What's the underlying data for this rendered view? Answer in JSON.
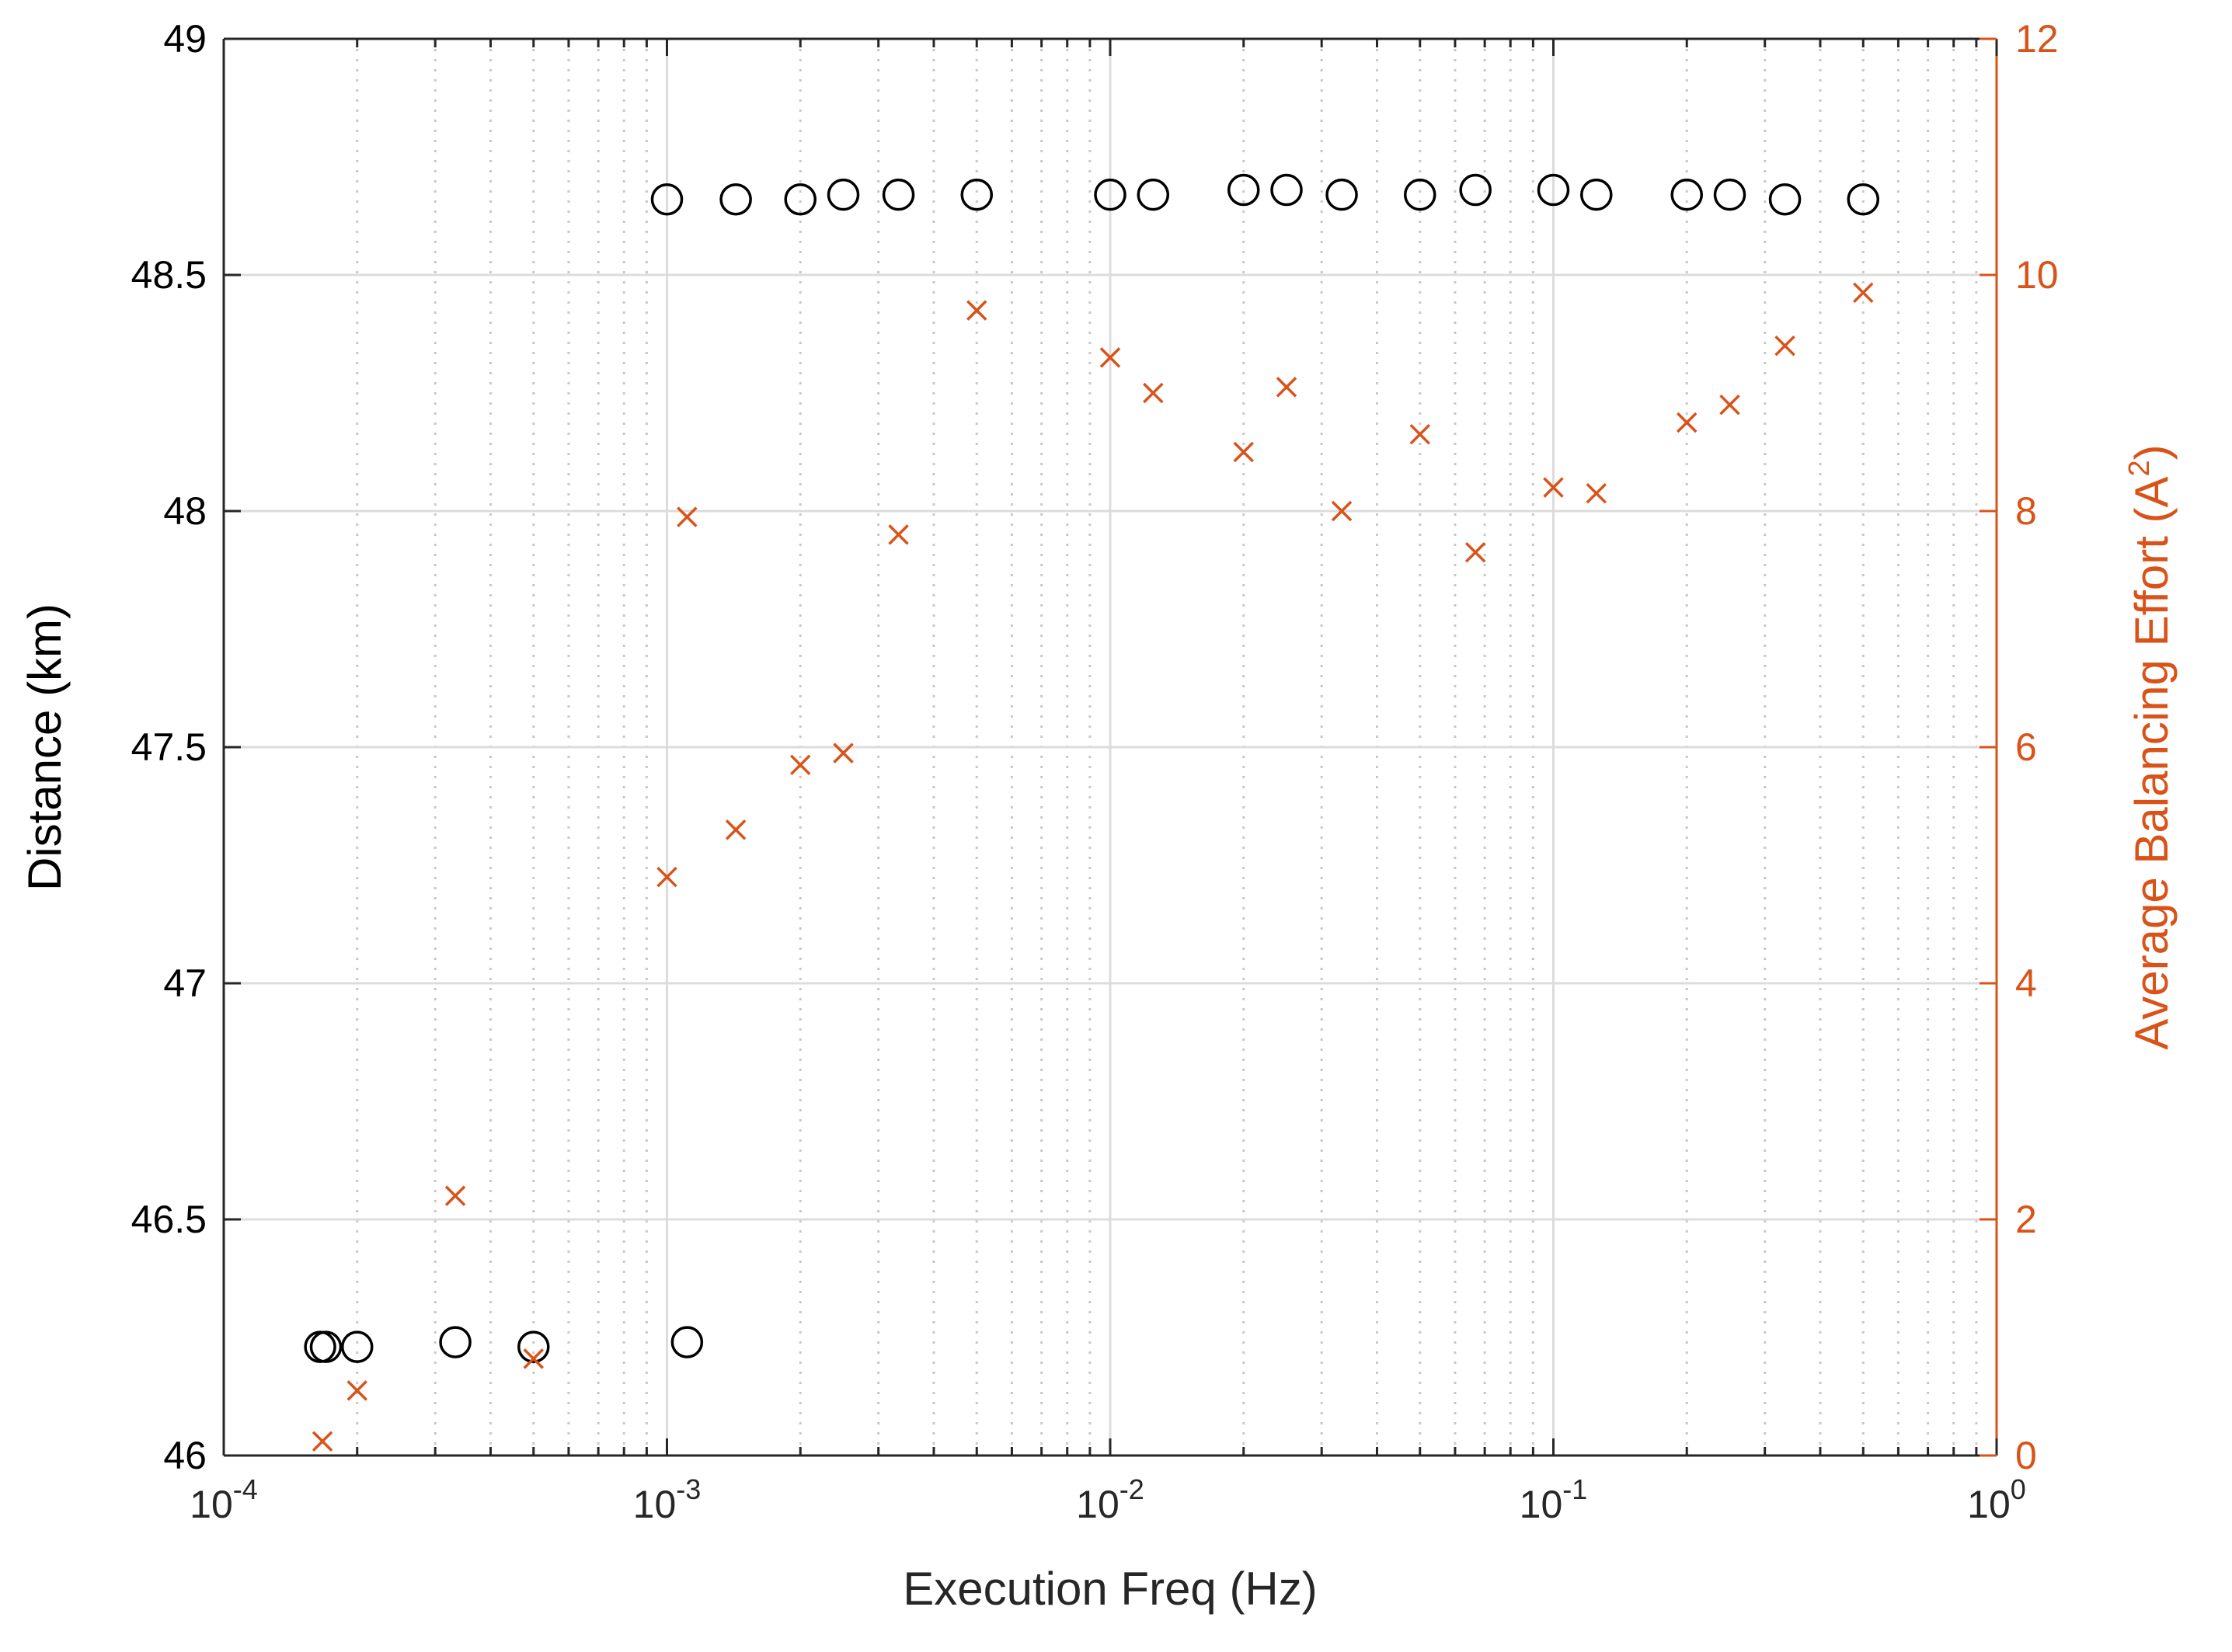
{
  "chart_data": {
    "type": "scatter",
    "title": "",
    "xlabel": "Execution Freq (Hz)",
    "ylabel_left": "Distance (km)",
    "ylabel_right": "Average Balancing Effort (A^2)",
    "xscale": "log",
    "xlim": [
      0.0001,
      1
    ],
    "ylim_left": [
      46,
      49
    ],
    "ylim_right": [
      0,
      12
    ],
    "grid": true,
    "x_ticks": [
      {
        "base": "10",
        "exp": "-4",
        "value": 0.0001
      },
      {
        "base": "10",
        "exp": "-3",
        "value": 0.001
      },
      {
        "base": "10",
        "exp": "-2",
        "value": 0.01
      },
      {
        "base": "10",
        "exp": "-1",
        "value": 0.1
      },
      {
        "base": "10",
        "exp": "0",
        "value": 1
      }
    ],
    "y_left_ticks": [
      "46",
      "46.5",
      "47",
      "47.5",
      "48",
      "48.5",
      "49"
    ],
    "y_right_ticks": [
      "0",
      "2",
      "4",
      "6",
      "8",
      "10",
      "12"
    ],
    "colors": {
      "distance": "#000000",
      "effort": "#d95319",
      "grid": "#dcdcdc",
      "minor_grid": "#c8c8c8",
      "axis": "#262626"
    },
    "series": [
      {
        "axis": "left",
        "marker": "circle",
        "color": "#000000",
        "x": [
          0.000165,
          0.00017,
          0.0002,
          0.000333,
          0.0005,
          0.00111,
          0.001,
          0.00143,
          0.002,
          0.0025,
          0.00333,
          0.005,
          0.01,
          0.0125,
          0.02,
          0.025,
          0.0333,
          0.05,
          0.0667,
          0.1,
          0.125,
          0.2,
          0.25,
          0.333,
          0.5
        ],
        "y": [
          46.23,
          46.23,
          46.23,
          46.24,
          46.23,
          46.24,
          48.66,
          48.66,
          48.66,
          48.67,
          48.67,
          48.67,
          48.67,
          48.67,
          48.68,
          48.68,
          48.67,
          48.67,
          48.68,
          48.68,
          48.67,
          48.67,
          48.67,
          48.66,
          48.66
        ]
      },
      {
        "axis": "right",
        "marker": "x",
        "color": "#d95319",
        "x": [
          0.000167,
          0.0002,
          0.000333,
          0.0005,
          0.001,
          0.00111,
          0.00143,
          0.002,
          0.0025,
          0.00333,
          0.005,
          0.01,
          0.0125,
          0.02,
          0.025,
          0.0333,
          0.05,
          0.0667,
          0.1,
          0.125,
          0.2,
          0.25,
          0.333,
          0.5
        ],
        "y": [
          0.12,
          0.55,
          2.2,
          0.82,
          4.9,
          7.95,
          5.3,
          5.85,
          5.95,
          7.8,
          9.7,
          9.3,
          9.0,
          8.5,
          9.05,
          8.0,
          8.65,
          7.65,
          8.2,
          8.15,
          8.75,
          8.9,
          9.4,
          9.85
        ]
      }
    ]
  }
}
